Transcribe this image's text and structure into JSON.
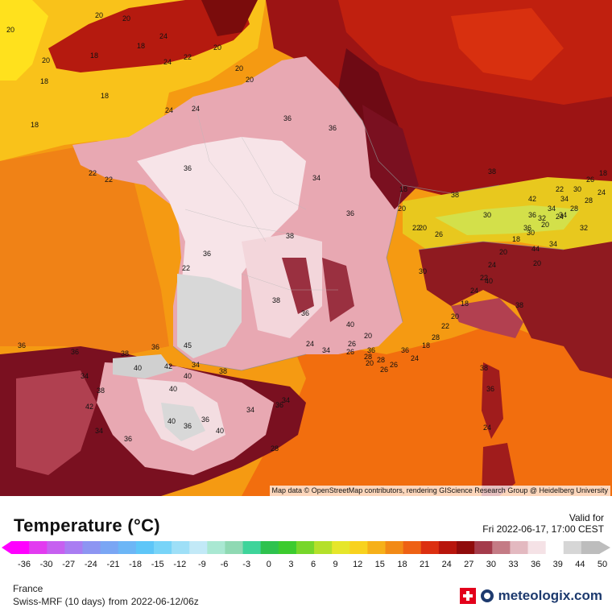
{
  "map": {
    "attribution": "Map data © OpenStreetMap contributors, rendering GIScience Research Group @ Heidelberg University",
    "labels": [
      "20",
      "20",
      "20",
      "24",
      "18",
      "20",
      "20",
      "18",
      "24",
      "22",
      "20",
      "18",
      "20",
      "18",
      "18",
      "24",
      "24",
      "36",
      "36",
      "22",
      "22",
      "36",
      "34",
      "38",
      "36",
      "20",
      "18",
      "22",
      "26",
      "36",
      "22",
      "38",
      "36",
      "40",
      "20",
      "36",
      "38",
      "38",
      "42",
      "30",
      "36",
      "34",
      "44",
      "40",
      "38",
      "36",
      "20",
      "34",
      "32",
      "20",
      "22",
      "36",
      "36",
      "34",
      "38",
      "36",
      "45",
      "40",
      "42",
      "40",
      "40",
      "34",
      "38",
      "34",
      "40",
      "36",
      "38",
      "34",
      "36",
      "42",
      "40",
      "36",
      "34",
      "38",
      "36",
      "24",
      "28",
      "26",
      "24",
      "36",
      "30",
      "34",
      "26",
      "28",
      "20",
      "28",
      "26",
      "26",
      "24",
      "18",
      "28",
      "22",
      "20",
      "18",
      "24",
      "22",
      "24",
      "20",
      "18",
      "36",
      "32",
      "34",
      "34",
      "30",
      "26",
      "18",
      "24",
      "28",
      "28",
      "24",
      "20",
      "30"
    ]
  },
  "footer": {
    "title": "Temperature (°C)",
    "valid_label": "Valid for",
    "valid_time": "Fri 2022-06-17, 17:00 CEST",
    "region": "France",
    "model": "Swiss-MRF (10 days)",
    "from_label": "from",
    "run": "2022-06-12/06z",
    "brand": "meteologix.com"
  },
  "legend": {
    "ticks": [
      "-36",
      "-30",
      "-27",
      "-24",
      "-21",
      "-18",
      "-15",
      "-12",
      "-9",
      "-6",
      "-3",
      "0",
      "3",
      "6",
      "9",
      "12",
      "15",
      "18",
      "21",
      "24",
      "27",
      "30",
      "33",
      "36",
      "39",
      "44",
      "50"
    ],
    "colors": [
      "#ff00ff",
      "#e23bf0",
      "#c660f0",
      "#a97df2",
      "#8d95f2",
      "#7aa6f4",
      "#6cb6f6",
      "#5ec6f8",
      "#78d4f8",
      "#9edff7",
      "#c2e9f7",
      "#a9e8d2",
      "#8fd9b3",
      "#3ed49a",
      "#2ec24e",
      "#3ccb2e",
      "#77d62a",
      "#b4e02a",
      "#e6e62a",
      "#f8d21e",
      "#f6b019",
      "#f28a16",
      "#ee6114",
      "#dc2f10",
      "#b8150c",
      "#8f0b0b",
      "#a43b4b",
      "#c47b85",
      "#e3b9c0",
      "#f5e2e6",
      "#ffffff",
      "#d6d6d6",
      "#bdbdbd"
    ]
  },
  "colors": {
    "sea_atlantic": "#f59a12",
    "sea_med": "#f2700e",
    "land_hot": "#e8a8b2",
    "land_very_hot": "#f7e4e8",
    "land_extreme": "#d8d8d8",
    "land_warm": "#9c1414",
    "uk_land": "#b51a0f",
    "alps": "#e8c81e"
  }
}
